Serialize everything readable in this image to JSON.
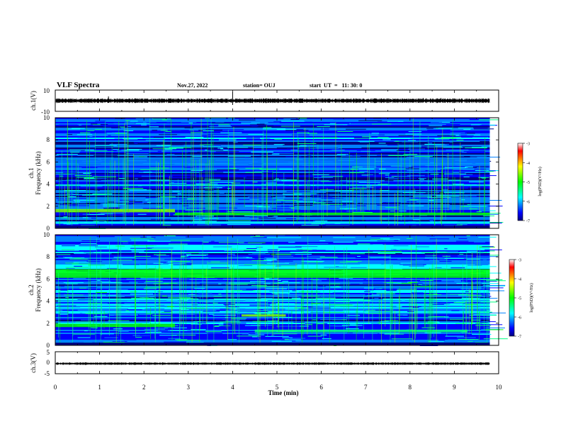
{
  "header": {
    "title": "VLF Spectra",
    "date": "Nov.27, 2022",
    "station": "station= OUJ",
    "start_ut": "start  UT  =   11: 30: 0"
  },
  "colors": {
    "colormap": [
      "#000080",
      "#0000ff",
      "#0080ff",
      "#00ffff",
      "#00ff80",
      "#00ff00",
      "#80ff00",
      "#ffff00",
      "#ff8000",
      "#ff0000",
      "#ffffff"
    ],
    "trace": "#000000"
  },
  "chart_data": [
    {
      "type": "line",
      "name": "ch1-waveform",
      "ylabel": "ch.1(V)",
      "ylim": [
        -10,
        10
      ],
      "yticks": [
        "10",
        "-10"
      ],
      "xlim": [
        0,
        10
      ],
      "x_end_min": 9.8,
      "baseline_v": 0,
      "noise_amplitude_v": 1.5,
      "bursts": [
        {
          "t_min": 1.2,
          "v": 4
        },
        {
          "t_min": 4.0,
          "v": 8
        },
        {
          "t_min": 8.3,
          "v": 2.5
        },
        {
          "t_min": 8.7,
          "v": 2.5
        }
      ]
    },
    {
      "type": "heatmap",
      "name": "ch1-spectrogram",
      "ylabel": "ch.1\nFrequency (kHz)",
      "ylim": [
        0,
        10
      ],
      "yticks": [
        "0",
        "2",
        "4",
        "6",
        "8",
        "10"
      ],
      "xlim": [
        0,
        10
      ],
      "x_end_min": 9.8,
      "colorbar": {
        "label": "log(PSD)(V²/Hz)",
        "range": [
          -7,
          -3
        ],
        "ticks": [
          "-3",
          "-4",
          "-5",
          "-6",
          "-7"
        ]
      },
      "bands": [
        {
          "f_khz": 1.6,
          "width_khz": 0.3,
          "t_start_min": 0.0,
          "t_end_min": 2.7,
          "level": -4.6
        },
        {
          "f_khz": 1.3,
          "width_khz": 0.25,
          "t_start_min": 2.7,
          "t_end_min": 9.8,
          "level": -5.0
        },
        {
          "f_khz": 6.0,
          "width_khz": 0.8,
          "t_start_min": 0.0,
          "t_end_min": 9.8,
          "level": -5.9
        },
        {
          "f_khz": 3.9,
          "width_khz": 0.15,
          "t_start_min": 0.0,
          "t_end_min": 9.8,
          "level": -5.7
        },
        {
          "f_khz": 0.5,
          "width_khz": 0.2,
          "t_start_min": 0.0,
          "t_end_min": 9.8,
          "level": -5.6
        }
      ],
      "background_level": -6.3
    },
    {
      "type": "heatmap",
      "name": "ch2-spectrogram",
      "ylabel": "ch.2\nFrequency (kHz)",
      "ylim": [
        0,
        10
      ],
      "yticks": [
        "0",
        "2",
        "4",
        "6",
        "8",
        "10"
      ],
      "xlim": [
        0,
        10
      ],
      "x_end_min": 9.8,
      "colorbar": {
        "label": "log(PSD)(V²/Hz)",
        "range": [
          -7,
          -3
        ],
        "ticks": [
          "-3",
          "-4",
          "-5",
          "-6",
          "-7"
        ]
      },
      "bands": [
        {
          "f_khz": 6.5,
          "width_khz": 0.8,
          "t_start_min": 0.0,
          "t_end_min": 9.8,
          "level": -5.0
        },
        {
          "f_khz": 1.8,
          "width_khz": 0.3,
          "t_start_min": 0.0,
          "t_end_min": 2.7,
          "level": -5.0
        },
        {
          "f_khz": 1.3,
          "width_khz": 0.25,
          "t_start_min": 4.5,
          "t_end_min": 9.3,
          "level": -5.2
        },
        {
          "f_khz": 2.7,
          "width_khz": 0.2,
          "t_start_min": 4.2,
          "t_end_min": 5.2,
          "level": -4.4
        },
        {
          "f_khz": 4.0,
          "width_khz": 0.15,
          "t_start_min": 0.0,
          "t_end_min": 9.8,
          "level": -5.5
        }
      ],
      "background_level": -6.1
    },
    {
      "type": "line",
      "name": "ch3-waveform",
      "ylabel": "ch.3(V)",
      "xlabel": "Time (min)",
      "ylim": [
        -5,
        5
      ],
      "yticks": [
        "5",
        "0",
        "-5"
      ],
      "xlim": [
        0,
        10
      ],
      "xticks": [
        "0",
        "1",
        "2",
        "3",
        "4",
        "5",
        "6",
        "7",
        "8",
        "9",
        "10"
      ],
      "x_end_min": 9.8,
      "baseline_v": -0.4,
      "noise_amplitude_v": 0.4,
      "bursts": []
    }
  ]
}
